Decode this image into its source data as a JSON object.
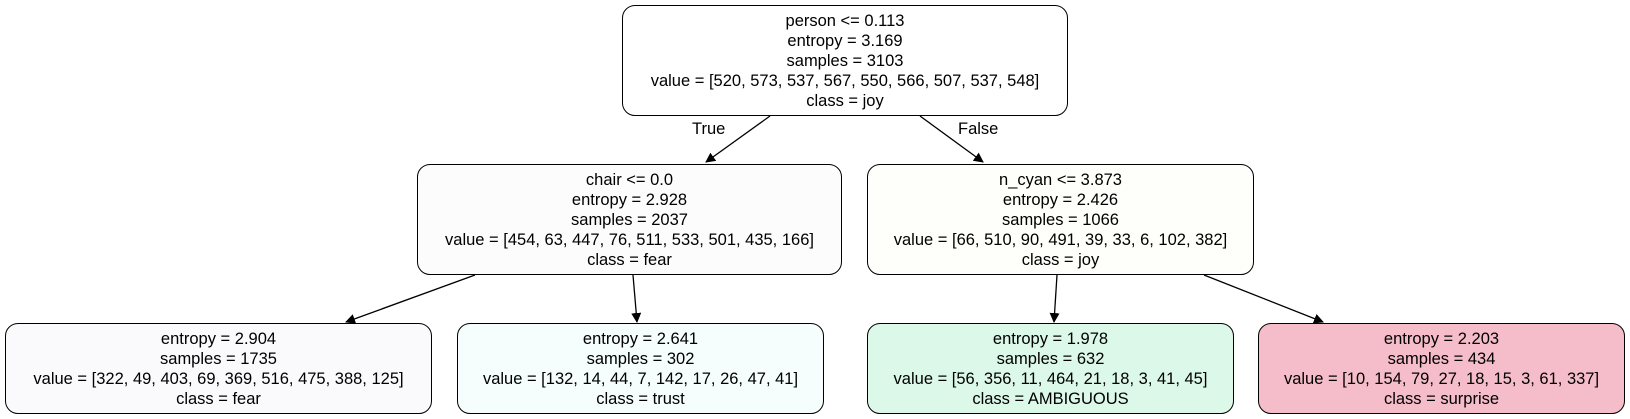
{
  "nodes": [
    {
      "id": "root",
      "split": "person <= 0.113",
      "entropy": "entropy = 3.169",
      "samples": "samples = 3103",
      "value": "value = [520, 573, 537, 567, 550, 566, 507, 537, 548]",
      "class": "class = joy",
      "fill": "#ffffff"
    },
    {
      "id": "n1",
      "split": "chair <= 0.0",
      "entropy": "entropy = 2.928",
      "samples": "samples = 2037",
      "value": "value = [454, 63, 447, 76, 511, 533, 501, 435, 166]",
      "class": "class = fear",
      "fill": "#fcfcfd"
    },
    {
      "id": "n4",
      "split": "n_cyan <= 3.873",
      "entropy": "entropy = 2.426",
      "samples": "samples = 1066",
      "value": "value = [66, 510, 90, 491, 39, 33, 6, 102, 382]",
      "class": "class = joy",
      "fill": "#fefffa"
    },
    {
      "id": "n2",
      "split": "",
      "entropy": "entropy = 2.904",
      "samples": "samples = 1735",
      "value": "value = [322, 49, 403, 69, 369, 516, 475, 388, 125]",
      "class": "class = fear",
      "fill": "#fafafc"
    },
    {
      "id": "n3",
      "split": "",
      "entropy": "entropy = 2.641",
      "samples": "samples = 302",
      "value": "value = [132, 14, 44, 7, 142, 17, 26, 47, 41]",
      "class": "class = trust",
      "fill": "#f5fdfd"
    },
    {
      "id": "n5",
      "split": "",
      "entropy": "entropy = 1.978",
      "samples": "samples = 632",
      "value": "value = [56, 356, 11, 464, 21, 18, 3, 41, 45]",
      "class": "class = AMBIGUOUS",
      "fill": "#dcf8e8"
    },
    {
      "id": "n6",
      "split": "",
      "entropy": "entropy = 2.203",
      "samples": "samples = 434",
      "value": "value = [10, 154, 79, 27, 18, 15, 3, 61, 337]",
      "class": "class = surprise",
      "fill": "#f5bcc9"
    }
  ],
  "edges": [
    {
      "from": "root",
      "to": "n1",
      "label": "True"
    },
    {
      "from": "root",
      "to": "n4",
      "label": "False"
    },
    {
      "from": "n1",
      "to": "n2",
      "label": ""
    },
    {
      "from": "n1",
      "to": "n3",
      "label": ""
    },
    {
      "from": "n4",
      "to": "n5",
      "label": ""
    },
    {
      "from": "n4",
      "to": "n6",
      "label": ""
    }
  ]
}
